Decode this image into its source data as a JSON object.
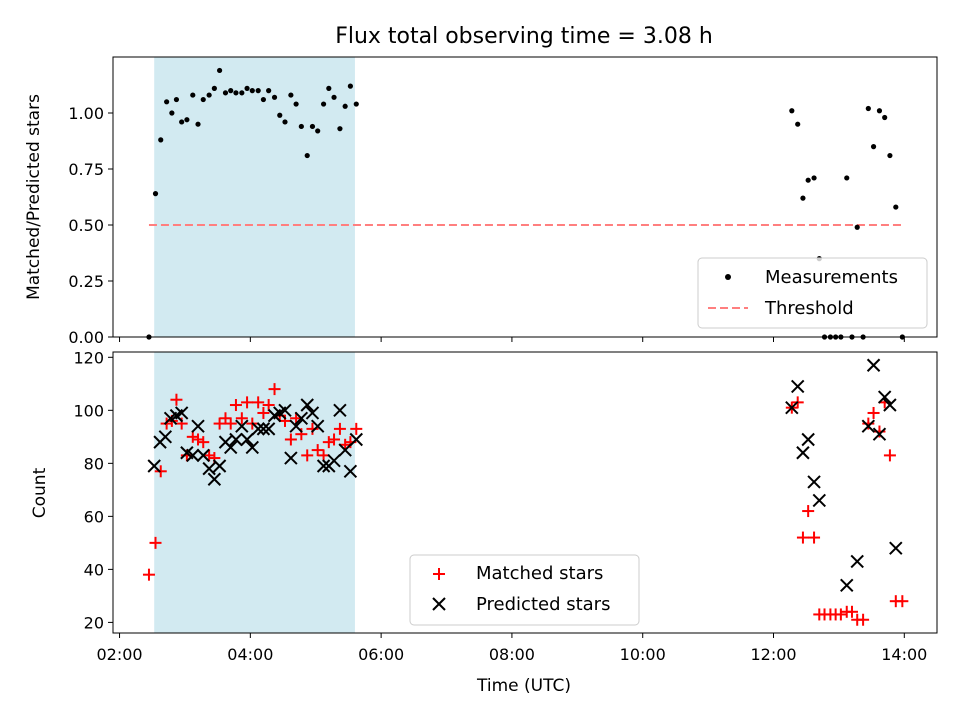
{
  "figure": {
    "title": "Flux total observing time = 3.08 h",
    "shade_color": "#add8e6"
  },
  "chart_data": [
    {
      "type": "scatter",
      "ylabel": "Matched/Predicted stars",
      "xlim": [
        1.9,
        14.5
      ],
      "ylim": [
        0.0,
        1.25
      ],
      "yticks": [
        0.0,
        0.25,
        0.5,
        0.75,
        1.0
      ],
      "ytick_labels": [
        "0.00",
        "0.25",
        "0.50",
        "0.75",
        "1.00"
      ],
      "shaded_interval": [
        2.53,
        5.6
      ],
      "threshold": {
        "value": 0.5,
        "x_range": [
          2.45,
          14.0
        ],
        "color": "#ff7f7f"
      },
      "legend": {
        "placement": "lower-right",
        "entries": [
          {
            "key": "measurements",
            "label": "Measurements"
          },
          {
            "key": "threshold",
            "label": "Threshold"
          }
        ]
      },
      "series": [
        {
          "key": "measurements",
          "name": "Measurements",
          "color": "#000000",
          "marker": "dot",
          "points": [
            [
              2.45,
              0.0
            ],
            [
              2.55,
              0.64
            ],
            [
              2.63,
              0.88
            ],
            [
              2.72,
              1.05
            ],
            [
              2.8,
              1.0
            ],
            [
              2.87,
              1.06
            ],
            [
              2.95,
              0.96
            ],
            [
              3.03,
              0.97
            ],
            [
              3.12,
              1.08
            ],
            [
              3.2,
              0.95
            ],
            [
              3.28,
              1.06
            ],
            [
              3.37,
              1.08
            ],
            [
              3.45,
              1.11
            ],
            [
              3.53,
              1.19
            ],
            [
              3.62,
              1.09
            ],
            [
              3.7,
              1.1
            ],
            [
              3.78,
              1.09
            ],
            [
              3.87,
              1.09
            ],
            [
              3.95,
              1.11
            ],
            [
              4.03,
              1.1
            ],
            [
              4.12,
              1.1
            ],
            [
              4.2,
              1.06
            ],
            [
              4.28,
              1.1
            ],
            [
              4.37,
              1.07
            ],
            [
              4.45,
              0.99
            ],
            [
              4.53,
              0.96
            ],
            [
              4.62,
              1.08
            ],
            [
              4.7,
              1.04
            ],
            [
              4.78,
              0.94
            ],
            [
              4.87,
              0.81
            ],
            [
              4.95,
              0.94
            ],
            [
              5.03,
              0.92
            ],
            [
              5.12,
              1.04
            ],
            [
              5.2,
              1.11
            ],
            [
              5.28,
              1.07
            ],
            [
              5.37,
              0.93
            ],
            [
              5.45,
              1.03
            ],
            [
              5.53,
              1.12
            ],
            [
              5.62,
              1.04
            ],
            [
              12.28,
              1.01
            ],
            [
              12.37,
              0.95
            ],
            [
              12.45,
              0.62
            ],
            [
              12.53,
              0.7
            ],
            [
              12.62,
              0.71
            ],
            [
              12.7,
              0.35
            ],
            [
              12.78,
              0.0
            ],
            [
              12.87,
              0.0
            ],
            [
              12.95,
              0.0
            ],
            [
              13.03,
              0.0
            ],
            [
              13.12,
              0.71
            ],
            [
              13.2,
              0.0
            ],
            [
              13.28,
              0.49
            ],
            [
              13.37,
              0.0
            ],
            [
              13.45,
              1.02
            ],
            [
              13.53,
              0.85
            ],
            [
              13.62,
              1.01
            ],
            [
              13.7,
              0.98
            ],
            [
              13.78,
              0.81
            ],
            [
              13.87,
              0.58
            ],
            [
              13.97,
              0.0
            ]
          ]
        }
      ]
    },
    {
      "type": "scatter",
      "xlabel": "Time (UTC)",
      "ylabel": "Count",
      "xlim": [
        1.9,
        14.5
      ],
      "ylim": [
        16,
        122
      ],
      "xticks": [
        2,
        4,
        6,
        8,
        10,
        12,
        14
      ],
      "xtick_labels": [
        "02:00",
        "04:00",
        "06:00",
        "08:00",
        "10:00",
        "12:00",
        "14:00"
      ],
      "yticks": [
        20,
        40,
        60,
        80,
        100,
        120
      ],
      "ytick_labels": [
        "20",
        "40",
        "60",
        "80",
        "100",
        "120"
      ],
      "shaded_interval": [
        2.53,
        5.6
      ],
      "legend": {
        "placement": "lower-center",
        "entries": [
          {
            "key": "matched",
            "label": "Matched stars"
          },
          {
            "key": "predicted",
            "label": "Predicted stars"
          }
        ]
      },
      "series": [
        {
          "key": "matched",
          "name": "Matched stars",
          "color": "#ff0000",
          "marker": "plus",
          "points": [
            [
              2.45,
              38
            ],
            [
              2.55,
              50
            ],
            [
              2.63,
              77
            ],
            [
              2.72,
              95
            ],
            [
              2.8,
              96
            ],
            [
              2.87,
              104
            ],
            [
              2.95,
              95
            ],
            [
              3.03,
              83
            ],
            [
              3.12,
              90
            ],
            [
              3.2,
              89
            ],
            [
              3.28,
              88
            ],
            [
              3.37,
              83
            ],
            [
              3.45,
              82
            ],
            [
              3.53,
              95
            ],
            [
              3.62,
              97
            ],
            [
              3.7,
              95
            ],
            [
              3.78,
              102
            ],
            [
              3.87,
              97
            ],
            [
              3.95,
              103
            ],
            [
              4.03,
              95
            ],
            [
              4.12,
              103
            ],
            [
              4.2,
              99
            ],
            [
              4.28,
              102
            ],
            [
              4.37,
              108
            ],
            [
              4.45,
              98
            ],
            [
              4.53,
              96
            ],
            [
              4.62,
              89
            ],
            [
              4.7,
              97
            ],
            [
              4.78,
              91
            ],
            [
              4.87,
              83
            ],
            [
              4.95,
              93
            ],
            [
              5.03,
              85
            ],
            [
              5.12,
              83
            ],
            [
              5.2,
              88
            ],
            [
              5.28,
              89
            ],
            [
              5.37,
              93
            ],
            [
              5.45,
              87
            ],
            [
              5.53,
              88
            ],
            [
              5.62,
              93
            ],
            [
              12.28,
              101
            ],
            [
              12.37,
              103
            ],
            [
              12.45,
              52
            ],
            [
              12.53,
              62
            ],
            [
              12.62,
              52
            ],
            [
              12.7,
              23
            ],
            [
              12.78,
              23
            ],
            [
              12.87,
              23
            ],
            [
              12.95,
              23
            ],
            [
              13.03,
              23
            ],
            [
              13.12,
              24
            ],
            [
              13.2,
              24
            ],
            [
              13.28,
              21
            ],
            [
              13.37,
              21
            ],
            [
              13.45,
              95
            ],
            [
              13.53,
              99
            ],
            [
              13.62,
              92
            ],
            [
              13.7,
              103
            ],
            [
              13.78,
              83
            ],
            [
              13.87,
              28
            ],
            [
              13.97,
              28
            ]
          ]
        },
        {
          "key": "predicted",
          "name": "Predicted stars",
          "color": "#000000",
          "marker": "x",
          "points": [
            [
              2.53,
              79
            ],
            [
              2.62,
              88
            ],
            [
              2.7,
              90
            ],
            [
              2.78,
              97
            ],
            [
              2.87,
              98
            ],
            [
              2.95,
              99
            ],
            [
              3.03,
              84
            ],
            [
              3.12,
              83
            ],
            [
              3.2,
              94
            ],
            [
              3.28,
              83
            ],
            [
              3.37,
              78
            ],
            [
              3.45,
              74
            ],
            [
              3.53,
              79
            ],
            [
              3.62,
              88
            ],
            [
              3.7,
              86
            ],
            [
              3.78,
              89
            ],
            [
              3.87,
              94
            ],
            [
              3.95,
              89
            ],
            [
              4.03,
              86
            ],
            [
              4.12,
              93
            ],
            [
              4.2,
              93
            ],
            [
              4.28,
              93
            ],
            [
              4.37,
              98
            ],
            [
              4.45,
              99
            ],
            [
              4.53,
              100
            ],
            [
              4.62,
              82
            ],
            [
              4.7,
              94
            ],
            [
              4.78,
              97
            ],
            [
              4.87,
              102
            ],
            [
              4.95,
              99
            ],
            [
              5.03,
              94
            ],
            [
              5.12,
              79
            ],
            [
              5.2,
              79
            ],
            [
              5.28,
              81
            ],
            [
              5.37,
              100
            ],
            [
              5.45,
              85
            ],
            [
              5.53,
              77
            ],
            [
              5.62,
              89
            ],
            [
              12.28,
              101
            ],
            [
              12.37,
              109
            ],
            [
              12.45,
              84
            ],
            [
              12.53,
              89
            ],
            [
              12.62,
              73
            ],
            [
              12.7,
              66
            ],
            [
              13.12,
              34
            ],
            [
              13.28,
              43
            ],
            [
              13.45,
              94
            ],
            [
              13.53,
              117
            ],
            [
              13.62,
              91
            ],
            [
              13.7,
              105
            ],
            [
              13.78,
              102
            ],
            [
              13.87,
              48
            ]
          ]
        }
      ]
    }
  ]
}
